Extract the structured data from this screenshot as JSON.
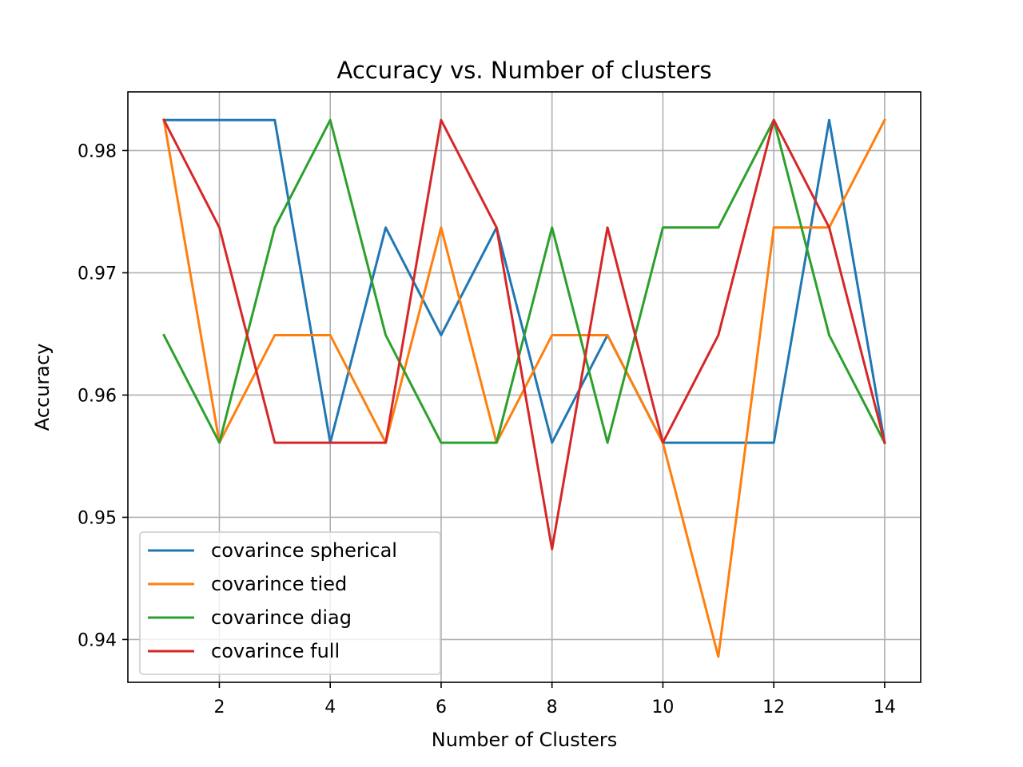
{
  "chart_data": {
    "type": "line",
    "title": "Accuracy  vs. Number of clusters",
    "xlabel": "Number of Clusters",
    "ylabel": "Accuracy",
    "x": [
      1,
      2,
      3,
      4,
      5,
      6,
      7,
      8,
      9,
      10,
      11,
      12,
      13,
      14
    ],
    "xlim": [
      0.35,
      14.65
    ],
    "ylim": [
      0.9365,
      0.9848
    ],
    "xticks": [
      2,
      4,
      6,
      8,
      10,
      12,
      14
    ],
    "xtick_labels": [
      "2",
      "4",
      "6",
      "8",
      "10",
      "12",
      "14"
    ],
    "yticks": [
      0.94,
      0.95,
      0.96,
      0.97,
      0.98
    ],
    "ytick_labels": [
      "0.94",
      "0.95",
      "0.96",
      "0.97",
      "0.98"
    ],
    "grid": true,
    "legend_position": "lower-left",
    "series": [
      {
        "name": "covarince  spherical",
        "color": "#1f77b4",
        "values": [
          0.9825,
          0.9825,
          0.9825,
          0.9561,
          0.9737,
          0.9649,
          0.9737,
          0.9561,
          0.9649,
          0.9561,
          0.9561,
          0.9561,
          0.9825,
          0.9561
        ]
      },
      {
        "name": "covarince  tied",
        "color": "#ff7f0e",
        "values": [
          0.9825,
          0.9561,
          0.9649,
          0.9649,
          0.9561,
          0.9737,
          0.9561,
          0.9649,
          0.9649,
          0.9561,
          0.9386,
          0.9737,
          0.9737,
          0.9825
        ]
      },
      {
        "name": "covarince  diag",
        "color": "#2ca02c",
        "values": [
          0.9649,
          0.9561,
          0.9737,
          0.9825,
          0.9649,
          0.9561,
          0.9561,
          0.9737,
          0.9561,
          0.9737,
          0.9737,
          0.9825,
          0.9649,
          0.9561
        ]
      },
      {
        "name": "covarince  full",
        "color": "#d62728",
        "values": [
          0.9825,
          0.9737,
          0.9561,
          0.9561,
          0.9561,
          0.9825,
          0.9737,
          0.9474,
          0.9737,
          0.9561,
          0.9649,
          0.9825,
          0.9737,
          0.9561
        ]
      }
    ]
  }
}
